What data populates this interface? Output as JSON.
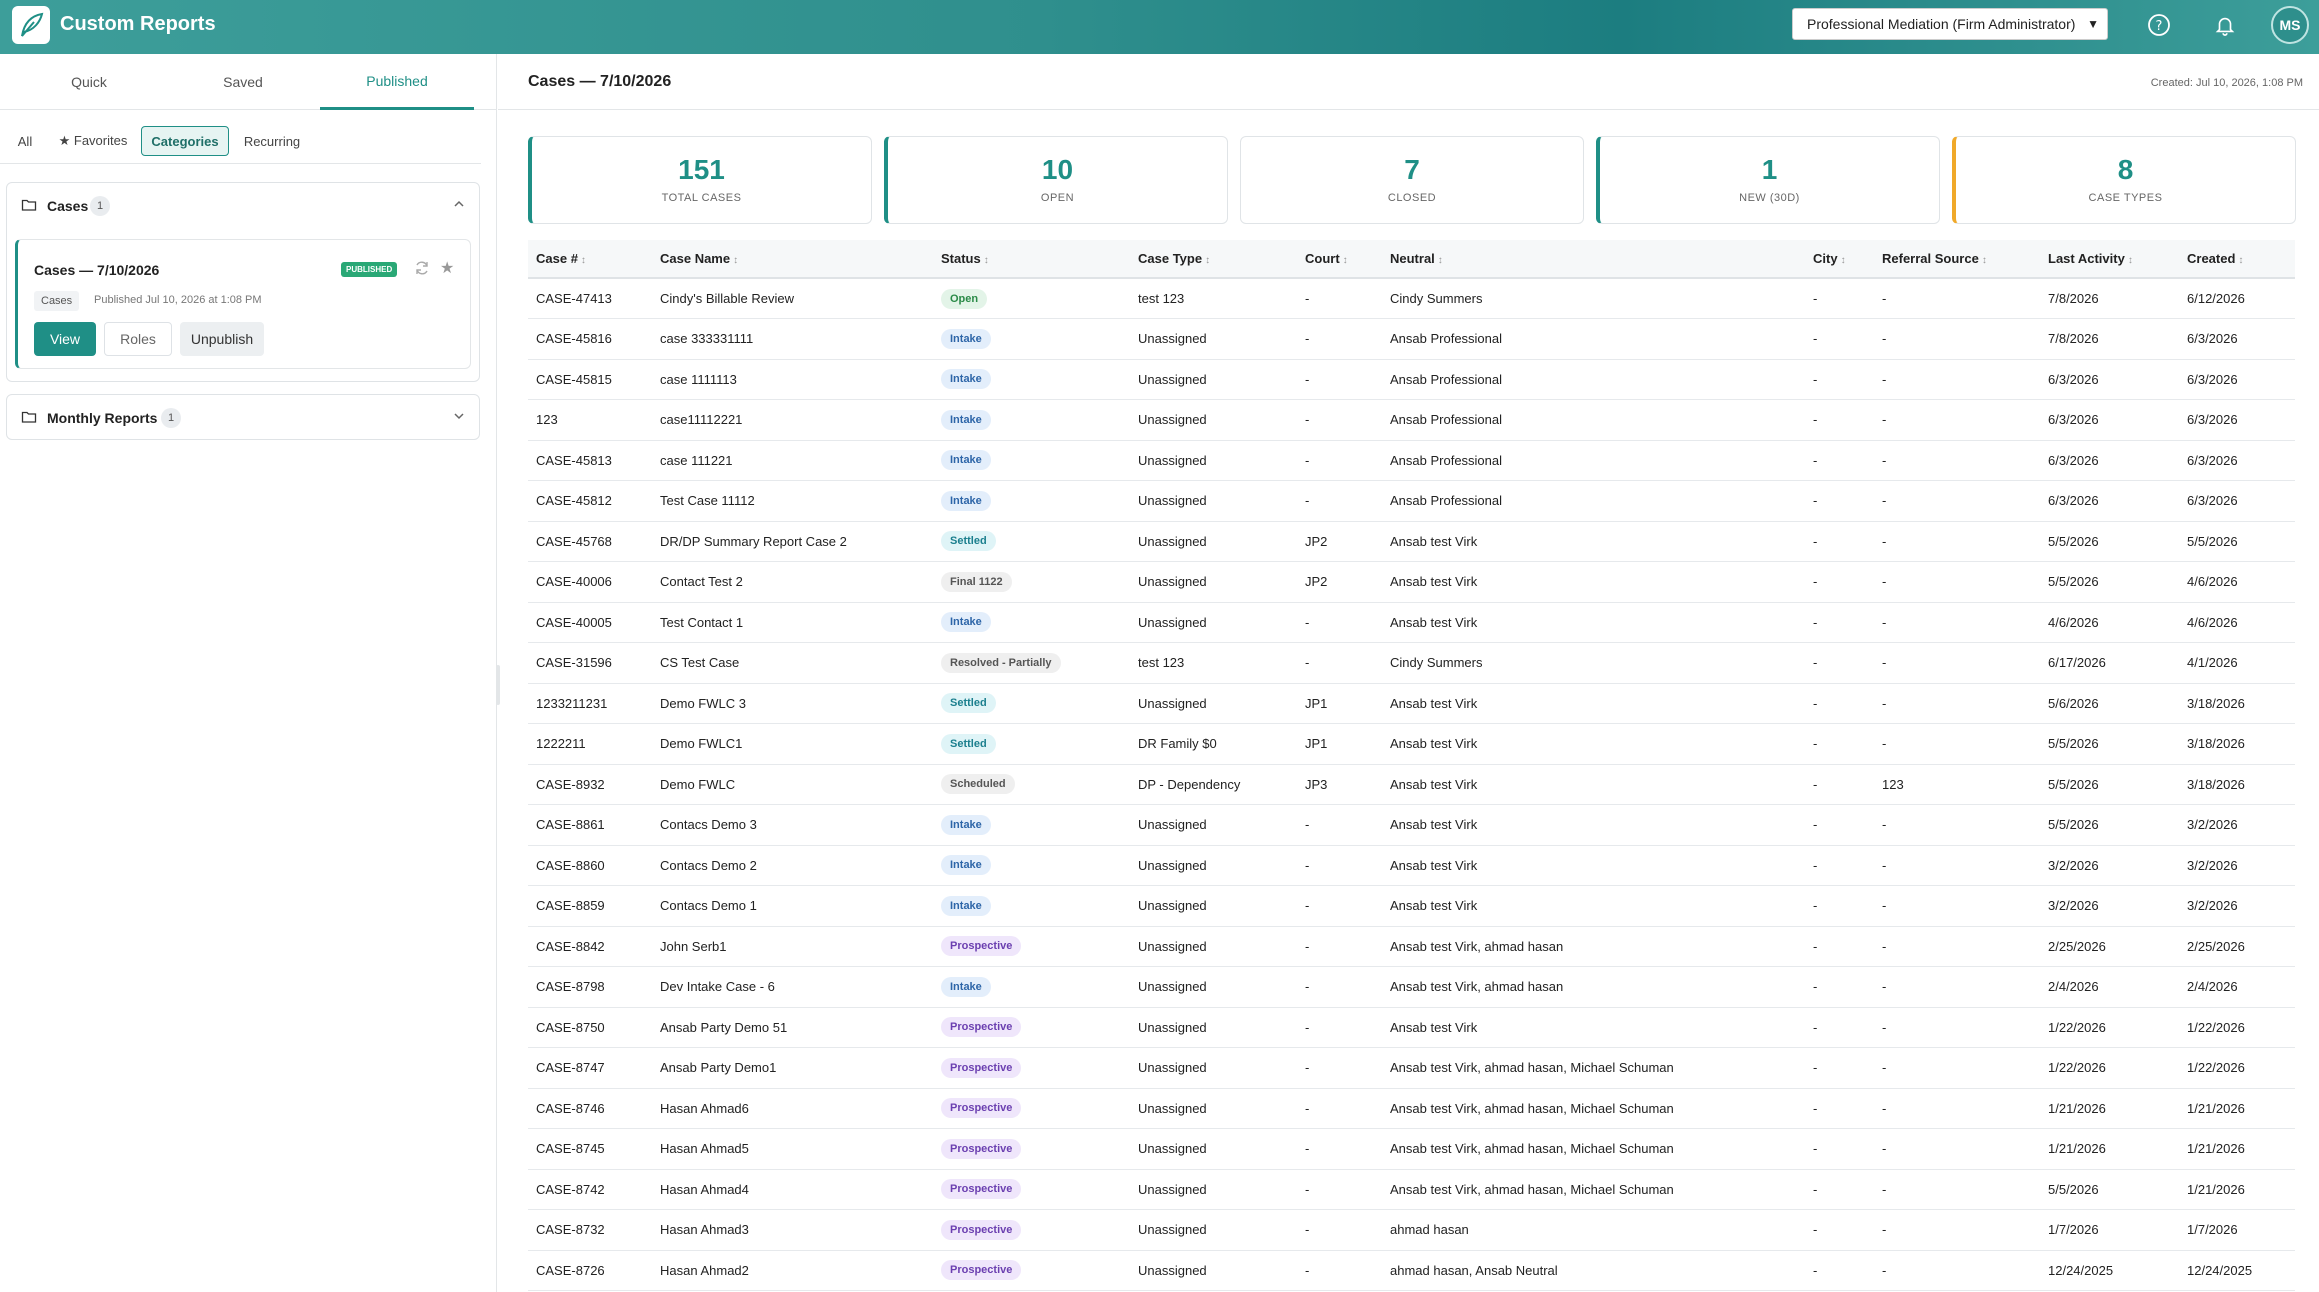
{
  "app": {
    "title": "Custom Reports",
    "logo_icon": "feather-logo-icon"
  },
  "header": {
    "firm_select": "Professional Mediation (Firm Administrator)",
    "avatar_initials": "MS"
  },
  "left": {
    "tabs": [
      {
        "label": "Quick"
      },
      {
        "label": "Saved"
      },
      {
        "label": "Published"
      }
    ],
    "filters": [
      {
        "label": "All"
      },
      {
        "label": "★ Favorites"
      },
      {
        "label": "Categories"
      },
      {
        "label": "Recurring"
      }
    ],
    "folders": [
      {
        "title": "Cases",
        "count": "1"
      },
      {
        "title": "Monthly Reports",
        "count": "1"
      }
    ],
    "report": {
      "title": "Cases — 7/10/2026",
      "badge": "PUBLISHED",
      "tag": "Cases",
      "meta": "Published Jul 10, 2026 at 1:08 PM",
      "view": "View",
      "roles": "Roles",
      "unpublish": "Unpublish"
    }
  },
  "main": {
    "title": "Cases — 7/10/2026",
    "created": "Created: Jul 10, 2026, 1:08 PM",
    "stats": [
      {
        "value": "151",
        "label": "TOTAL CASES"
      },
      {
        "value": "10",
        "label": "OPEN"
      },
      {
        "value": "7",
        "label": "CLOSED"
      },
      {
        "value": "1",
        "label": "NEW (30D)"
      },
      {
        "value": "8",
        "label": "CASE TYPES"
      }
    ],
    "columns": [
      "Case #",
      "Case Name",
      "Status",
      "Case Type",
      "Court",
      "Neutral",
      "City",
      "Referral Source",
      "Last Activity",
      "Created"
    ],
    "rows": [
      [
        "CASE-47413",
        "Cindy's Billable Review",
        "Open",
        "test 123",
        "-",
        "Cindy Summers",
        "-",
        "-",
        "7/8/2026",
        "6/12/2026"
      ],
      [
        "CASE-45816",
        "case 333331111",
        "Intake",
        "Unassigned",
        "-",
        "Ansab Professional",
        "-",
        "-",
        "7/8/2026",
        "6/3/2026"
      ],
      [
        "CASE-45815",
        "case 1111113",
        "Intake",
        "Unassigned",
        "-",
        "Ansab Professional",
        "-",
        "-",
        "6/3/2026",
        "6/3/2026"
      ],
      [
        "123",
        "case11112221",
        "Intake",
        "Unassigned",
        "-",
        "Ansab Professional",
        "-",
        "-",
        "6/3/2026",
        "6/3/2026"
      ],
      [
        "CASE-45813",
        "case 111221",
        "Intake",
        "Unassigned",
        "-",
        "Ansab Professional",
        "-",
        "-",
        "6/3/2026",
        "6/3/2026"
      ],
      [
        "CASE-45812",
        "Test Case 11112",
        "Intake",
        "Unassigned",
        "-",
        "Ansab Professional",
        "-",
        "-",
        "6/3/2026",
        "6/3/2026"
      ],
      [
        "CASE-45768",
        "DR/DP Summary Report Case 2",
        "Settled",
        "Unassigned",
        "JP2",
        "Ansab test Virk",
        "-",
        "-",
        "5/5/2026",
        "5/5/2026"
      ],
      [
        "CASE-40006",
        "Contact Test 2",
        "Final 1122",
        "Unassigned",
        "JP2",
        "Ansab test Virk",
        "-",
        "-",
        "5/5/2026",
        "4/6/2026"
      ],
      [
        "CASE-40005",
        "Test Contact 1",
        "Intake",
        "Unassigned",
        "-",
        "Ansab test Virk",
        "-",
        "-",
        "4/6/2026",
        "4/6/2026"
      ],
      [
        "CASE-31596",
        "CS Test Case",
        "Resolved - Partially",
        "test 123",
        "-",
        "Cindy Summers",
        "-",
        "-",
        "6/17/2026",
        "4/1/2026"
      ],
      [
        "1233211231",
        "Demo FWLC 3",
        "Settled",
        "Unassigned",
        "JP1",
        "Ansab test Virk",
        "-",
        "-",
        "5/6/2026",
        "3/18/2026"
      ],
      [
        "1222211",
        "Demo FWLC1",
        "Settled",
        "DR Family $0",
        "JP1",
        "Ansab test Virk",
        "-",
        "-",
        "5/5/2026",
        "3/18/2026"
      ],
      [
        "CASE-8932",
        "Demo FWLC",
        "Scheduled",
        "DP - Dependency",
        "JP3",
        "Ansab test Virk",
        "-",
        "123",
        "5/5/2026",
        "3/18/2026"
      ],
      [
        "CASE-8861",
        "Contacs Demo 3",
        "Intake",
        "Unassigned",
        "-",
        "Ansab test Virk",
        "-",
        "-",
        "5/5/2026",
        "3/2/2026"
      ],
      [
        "CASE-8860",
        "Contacs Demo 2",
        "Intake",
        "Unassigned",
        "-",
        "Ansab test Virk",
        "-",
        "-",
        "3/2/2026",
        "3/2/2026"
      ],
      [
        "CASE-8859",
        "Contacs Demo 1",
        "Intake",
        "Unassigned",
        "-",
        "Ansab test Virk",
        "-",
        "-",
        "3/2/2026",
        "3/2/2026"
      ],
      [
        "CASE-8842",
        "John Serb1",
        "Prospective",
        "Unassigned",
        "-",
        "Ansab test Virk, ahmad hasan",
        "-",
        "-",
        "2/25/2026",
        "2/25/2026"
      ],
      [
        "CASE-8798",
        "Dev Intake Case - 6",
        "Intake",
        "Unassigned",
        "-",
        "Ansab test Virk, ahmad hasan",
        "-",
        "-",
        "2/4/2026",
        "2/4/2026"
      ],
      [
        "CASE-8750",
        "Ansab Party Demo 51",
        "Prospective",
        "Unassigned",
        "-",
        "Ansab test Virk",
        "-",
        "-",
        "1/22/2026",
        "1/22/2026"
      ],
      [
        "CASE-8747",
        "Ansab Party Demo1",
        "Prospective",
        "Unassigned",
        "-",
        "Ansab test Virk, ahmad hasan, Michael Schuman",
        "-",
        "-",
        "1/22/2026",
        "1/22/2026"
      ],
      [
        "CASE-8746",
        "Hasan Ahmad6",
        "Prospective",
        "Unassigned",
        "-",
        "Ansab test Virk, ahmad hasan, Michael Schuman",
        "-",
        "-",
        "1/21/2026",
        "1/21/2026"
      ],
      [
        "CASE-8745",
        "Hasan Ahmad5",
        "Prospective",
        "Unassigned",
        "-",
        "Ansab test Virk, ahmad hasan, Michael Schuman",
        "-",
        "-",
        "1/21/2026",
        "1/21/2026"
      ],
      [
        "CASE-8742",
        "Hasan Ahmad4",
        "Prospective",
        "Unassigned",
        "-",
        "Ansab test Virk, ahmad hasan, Michael Schuman",
        "-",
        "-",
        "5/5/2026",
        "1/21/2026"
      ],
      [
        "CASE-8732",
        "Hasan Ahmad3",
        "Prospective",
        "Unassigned",
        "-",
        "ahmad hasan",
        "-",
        "-",
        "1/7/2026",
        "1/7/2026"
      ],
      [
        "CASE-8726",
        "Hasan Ahmad2",
        "Prospective",
        "Unassigned",
        "-",
        "ahmad hasan, Ansab Neutral",
        "-",
        "-",
        "12/24/2025",
        "12/24/2025"
      ]
    ]
  }
}
